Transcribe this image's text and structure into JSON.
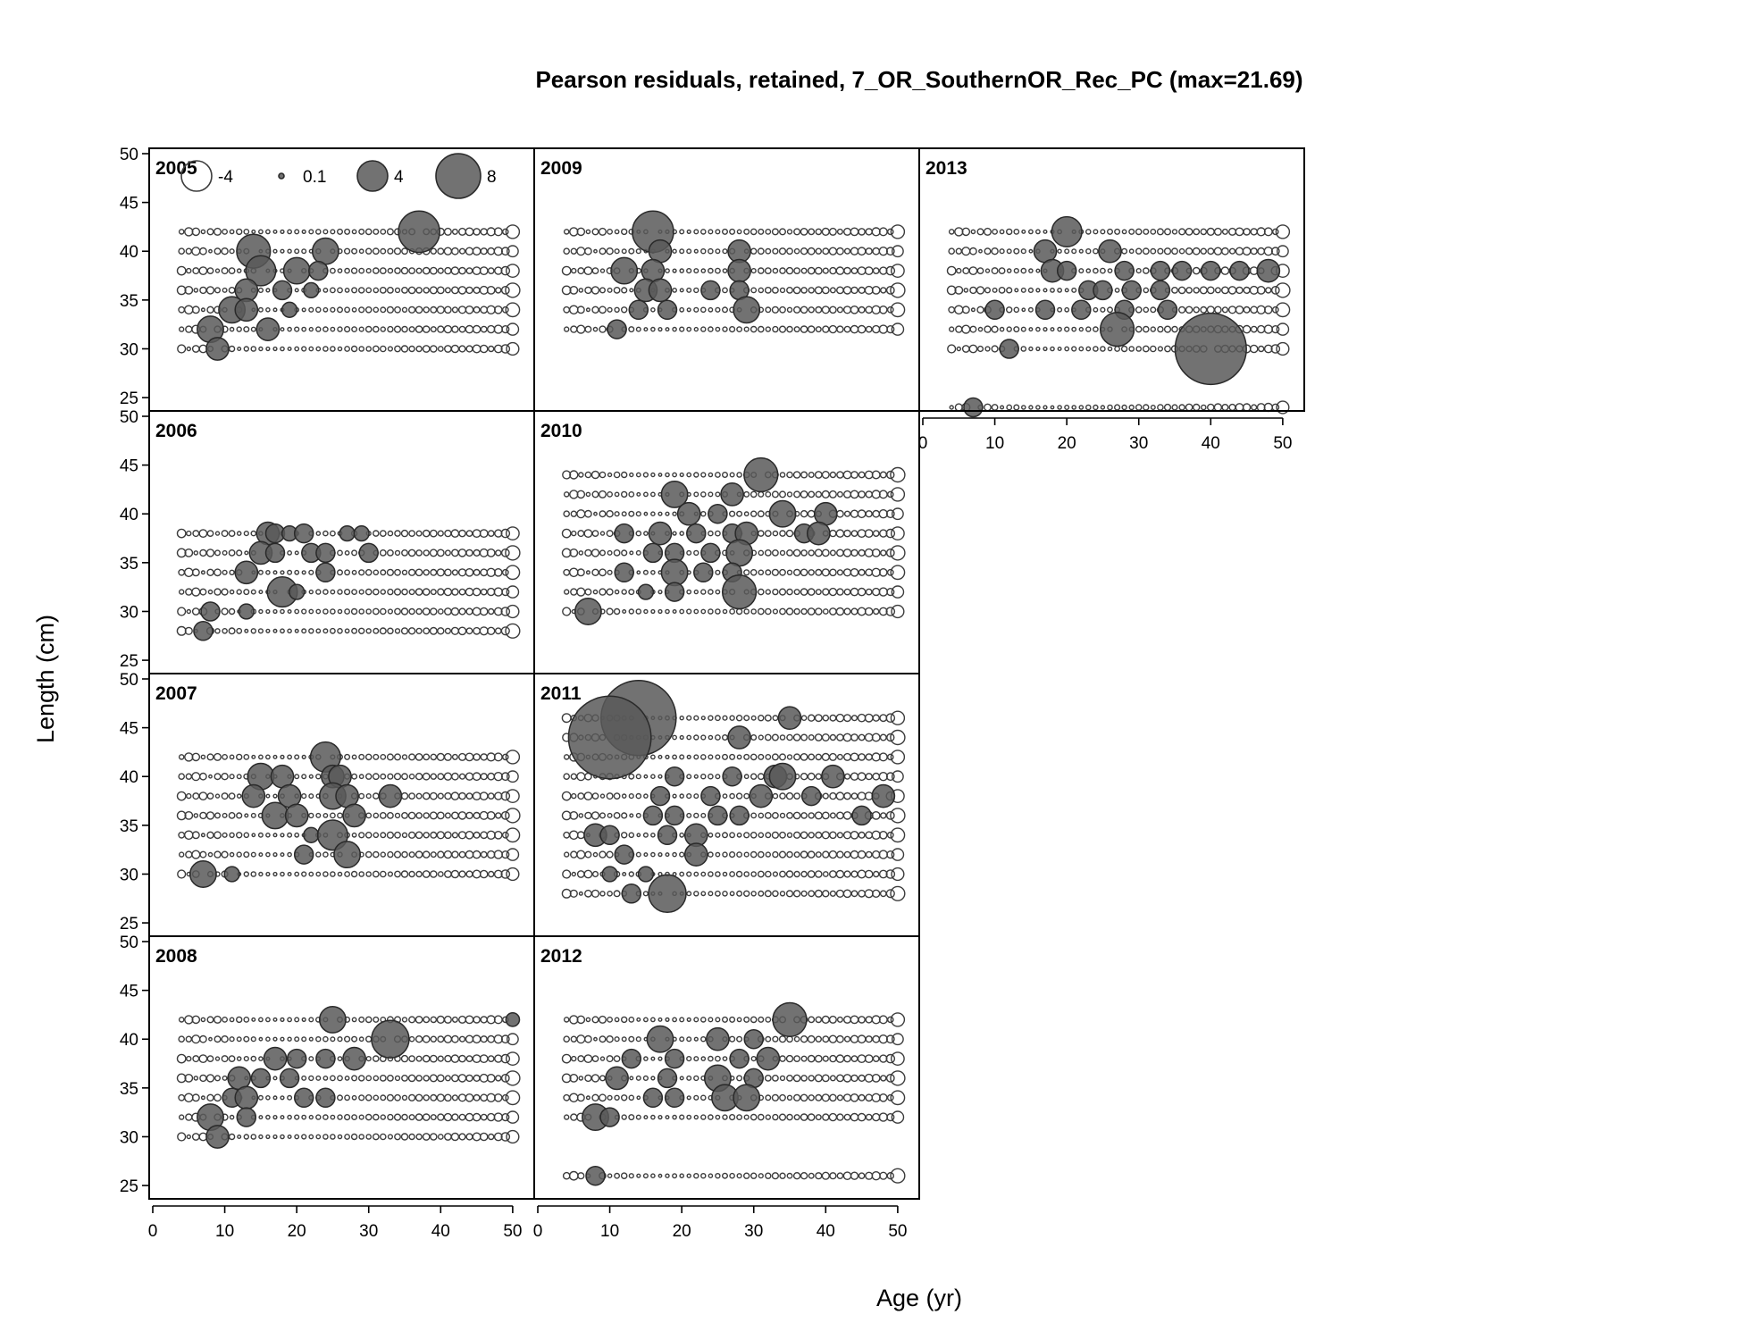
{
  "figure": {
    "title": "Pearson residuals, retained, 7_OR_SouthernOR_Rec_PC (max=21.69)",
    "xlabel": "Age (yr)",
    "ylabel": "Length (cm)"
  },
  "legend": {
    "placement": "top-left of first panel",
    "entries": [
      {
        "label": "-4",
        "value": -4
      },
      {
        "label": "0.1",
        "value": 0.1
      },
      {
        "label": "4",
        "value": 4
      },
      {
        "label": "8",
        "value": 8
      }
    ]
  },
  "colors": {
    "positive_fill": "#595959",
    "bubble_stroke": "#3c3c3c",
    "frame": "#000000"
  },
  "chart_data": {
    "type": "scatter",
    "subtype": "bubble",
    "xlim": [
      0,
      52
    ],
    "ylim": [
      24,
      50
    ],
    "x_ticks": [
      0,
      10,
      20,
      30,
      40,
      50
    ],
    "y_ticks": [
      25,
      30,
      35,
      40,
      45,
      50
    ],
    "max_residual": 21.69,
    "panels": [
      {
        "year": "2005",
        "ages_min": 4,
        "lengths": [
          30,
          32,
          34,
          36,
          38,
          40,
          42
        ],
        "highlights": [
          [
            37,
            42,
            5.5
          ],
          [
            24,
            40,
            3.5
          ],
          [
            14,
            40,
            4.5
          ],
          [
            15,
            38,
            4
          ],
          [
            20,
            38,
            3.5
          ],
          [
            23,
            38,
            2.5
          ],
          [
            13,
            36,
            3
          ],
          [
            18,
            36,
            2.5
          ],
          [
            22,
            36,
            2
          ],
          [
            11,
            34,
            3.5
          ],
          [
            13,
            34,
            3
          ],
          [
            19,
            34,
            2
          ],
          [
            8,
            32,
            3.5
          ],
          [
            16,
            32,
            3
          ],
          [
            9,
            30,
            3
          ]
        ]
      },
      {
        "year": "2006",
        "ages_min": 4,
        "lengths": [
          28,
          30,
          32,
          34,
          36,
          38
        ],
        "highlights": [
          [
            16,
            38,
            3
          ],
          [
            17,
            38,
            2.5
          ],
          [
            19,
            38,
            2
          ],
          [
            21,
            38,
            2.5
          ],
          [
            27,
            38,
            2
          ],
          [
            29,
            38,
            2
          ],
          [
            15,
            36,
            3
          ],
          [
            17,
            36,
            2.5
          ],
          [
            22,
            36,
            2.5
          ],
          [
            24,
            36,
            2.5
          ],
          [
            30,
            36,
            2.5
          ],
          [
            13,
            34,
            3
          ],
          [
            24,
            34,
            2.5
          ],
          [
            18,
            32,
            4
          ],
          [
            20,
            32,
            2
          ],
          [
            8,
            30,
            2.5
          ],
          [
            13,
            30,
            2
          ],
          [
            7,
            28,
            2.5
          ]
        ]
      },
      {
        "year": "2007",
        "ages_min": 4,
        "lengths": [
          30,
          32,
          34,
          36,
          38,
          40,
          42
        ],
        "highlights": [
          [
            24,
            42,
            4
          ],
          [
            15,
            40,
            3.5
          ],
          [
            18,
            40,
            3
          ],
          [
            25,
            40,
            3
          ],
          [
            26,
            40,
            3
          ],
          [
            14,
            38,
            3
          ],
          [
            19,
            38,
            3
          ],
          [
            25,
            38,
            3.5
          ],
          [
            27,
            38,
            3
          ],
          [
            33,
            38,
            3
          ],
          [
            17,
            36,
            3.5
          ],
          [
            20,
            36,
            3
          ],
          [
            28,
            36,
            3
          ],
          [
            22,
            34,
            2
          ],
          [
            25,
            34,
            4
          ],
          [
            21,
            32,
            2.5
          ],
          [
            27,
            32,
            3.5
          ],
          [
            7,
            30,
            3.5
          ],
          [
            11,
            30,
            2
          ]
        ]
      },
      {
        "year": "2008",
        "ages_min": 4,
        "lengths": [
          30,
          32,
          34,
          36,
          38,
          40,
          42
        ],
        "highlights": [
          [
            25,
            42,
            3.5
          ],
          [
            50,
            42,
            1.8
          ],
          [
            33,
            40,
            5
          ],
          [
            17,
            38,
            3
          ],
          [
            20,
            38,
            2.5
          ],
          [
            24,
            38,
            2.5
          ],
          [
            28,
            38,
            3
          ],
          [
            12,
            36,
            3
          ],
          [
            15,
            36,
            2.5
          ],
          [
            19,
            36,
            2.5
          ],
          [
            11,
            34,
            2.5
          ],
          [
            13,
            34,
            3
          ],
          [
            21,
            34,
            2.5
          ],
          [
            24,
            34,
            2.5
          ],
          [
            8,
            32,
            3.5
          ],
          [
            13,
            32,
            2.5
          ],
          [
            9,
            30,
            3
          ]
        ]
      },
      {
        "year": "2009",
        "ages_min": 4,
        "lengths": [
          32,
          34,
          36,
          38,
          40,
          42
        ],
        "highlights": [
          [
            16,
            42,
            5.5
          ],
          [
            17,
            40,
            3
          ],
          [
            28,
            40,
            3
          ],
          [
            12,
            38,
            3.5
          ],
          [
            16,
            38,
            3
          ],
          [
            28,
            38,
            3
          ],
          [
            15,
            36,
            3
          ],
          [
            17,
            36,
            3
          ],
          [
            24,
            36,
            2.5
          ],
          [
            28,
            36,
            2.5
          ],
          [
            14,
            34,
            2.5
          ],
          [
            18,
            34,
            2.5
          ],
          [
            29,
            34,
            3.5
          ],
          [
            11,
            32,
            2.5
          ]
        ]
      },
      {
        "year": "2010",
        "ages_min": 4,
        "lengths": [
          30,
          32,
          34,
          36,
          38,
          40,
          42,
          44
        ],
        "highlights": [
          [
            31,
            44,
            4.5
          ],
          [
            19,
            42,
            3.5
          ],
          [
            27,
            42,
            3
          ],
          [
            21,
            40,
            3
          ],
          [
            25,
            40,
            2.5
          ],
          [
            34,
            40,
            3.5
          ],
          [
            40,
            40,
            3
          ],
          [
            12,
            38,
            2.5
          ],
          [
            17,
            38,
            3
          ],
          [
            22,
            38,
            2.5
          ],
          [
            27,
            38,
            2.5
          ],
          [
            29,
            38,
            3
          ],
          [
            37,
            38,
            2.5
          ],
          [
            39,
            38,
            3
          ],
          [
            16,
            36,
            2.5
          ],
          [
            19,
            36,
            2.5
          ],
          [
            24,
            36,
            2.5
          ],
          [
            28,
            36,
            3.5
          ],
          [
            12,
            34,
            2.5
          ],
          [
            19,
            34,
            3.5
          ],
          [
            23,
            34,
            2.5
          ],
          [
            27,
            34,
            2.5
          ],
          [
            15,
            32,
            2
          ],
          [
            19,
            32,
            2.5
          ],
          [
            28,
            32,
            4.5
          ],
          [
            7,
            30,
            3.5
          ]
        ]
      },
      {
        "year": "2011",
        "ages_min": 4,
        "lengths": [
          28,
          30,
          32,
          34,
          36,
          38,
          40,
          42,
          44,
          46
        ],
        "highlights": [
          [
            14,
            46,
            10
          ],
          [
            35,
            46,
            3
          ],
          [
            10,
            44,
            11
          ],
          [
            28,
            44,
            3
          ],
          [
            19,
            40,
            2.5
          ],
          [
            27,
            40,
            2.5
          ],
          [
            33,
            40,
            3
          ],
          [
            34,
            40,
            3.5
          ],
          [
            41,
            40,
            3
          ],
          [
            17,
            38,
            2.5
          ],
          [
            24,
            38,
            2.5
          ],
          [
            31,
            38,
            3
          ],
          [
            38,
            38,
            2.5
          ],
          [
            48,
            38,
            3
          ],
          [
            16,
            36,
            2.5
          ],
          [
            19,
            36,
            2.5
          ],
          [
            25,
            36,
            2.5
          ],
          [
            28,
            36,
            2.5
          ],
          [
            45,
            36,
            2.5
          ],
          [
            8,
            34,
            3
          ],
          [
            10,
            34,
            2.5
          ],
          [
            18,
            34,
            2.5
          ],
          [
            22,
            34,
            3
          ],
          [
            12,
            32,
            2.5
          ],
          [
            22,
            32,
            3
          ],
          [
            10,
            30,
            2
          ],
          [
            15,
            30,
            2
          ],
          [
            13,
            28,
            2.5
          ],
          [
            18,
            28,
            5
          ]
        ]
      },
      {
        "year": "2012",
        "ages_min": 4,
        "lengths": [
          26,
          32,
          34,
          36,
          38,
          40,
          42
        ],
        "highlights": [
          [
            35,
            42,
            4.5
          ],
          [
            17,
            40,
            3.5
          ],
          [
            25,
            40,
            3
          ],
          [
            30,
            40,
            2.5
          ],
          [
            13,
            38,
            2.5
          ],
          [
            19,
            38,
            2.5
          ],
          [
            28,
            38,
            2.5
          ],
          [
            32,
            38,
            3
          ],
          [
            11,
            36,
            3
          ],
          [
            18,
            36,
            2.5
          ],
          [
            25,
            36,
            3.5
          ],
          [
            30,
            36,
            2.5
          ],
          [
            16,
            34,
            2.5
          ],
          [
            19,
            34,
            2.5
          ],
          [
            26,
            34,
            3.5
          ],
          [
            29,
            34,
            3.5
          ],
          [
            8,
            32,
            3.5
          ],
          [
            10,
            32,
            2.5
          ],
          [
            8,
            26,
            2.5
          ]
        ]
      },
      {
        "year": "2013",
        "ages_min": 4,
        "lengths": [
          24,
          30,
          32,
          34,
          36,
          38,
          40,
          42
        ],
        "highlights": [
          [
            20,
            42,
            4
          ],
          [
            17,
            40,
            3
          ],
          [
            26,
            40,
            3
          ],
          [
            18,
            38,
            3
          ],
          [
            20,
            38,
            2.5
          ],
          [
            28,
            38,
            2.5
          ],
          [
            33,
            38,
            2.5
          ],
          [
            36,
            38,
            2.5
          ],
          [
            40,
            38,
            2.5
          ],
          [
            44,
            38,
            2.5
          ],
          [
            48,
            38,
            3
          ],
          [
            23,
            36,
            2.5
          ],
          [
            25,
            36,
            2.5
          ],
          [
            29,
            36,
            2.5
          ],
          [
            33,
            36,
            2.5
          ],
          [
            10,
            34,
            2.5
          ],
          [
            17,
            34,
            2.5
          ],
          [
            22,
            34,
            2.5
          ],
          [
            28,
            34,
            2.5
          ],
          [
            34,
            34,
            2.5
          ],
          [
            27,
            32,
            4.5
          ],
          [
            12,
            30,
            2.5
          ],
          [
            40,
            30,
            9.5
          ],
          [
            7,
            24,
            2.5
          ]
        ]
      }
    ]
  }
}
